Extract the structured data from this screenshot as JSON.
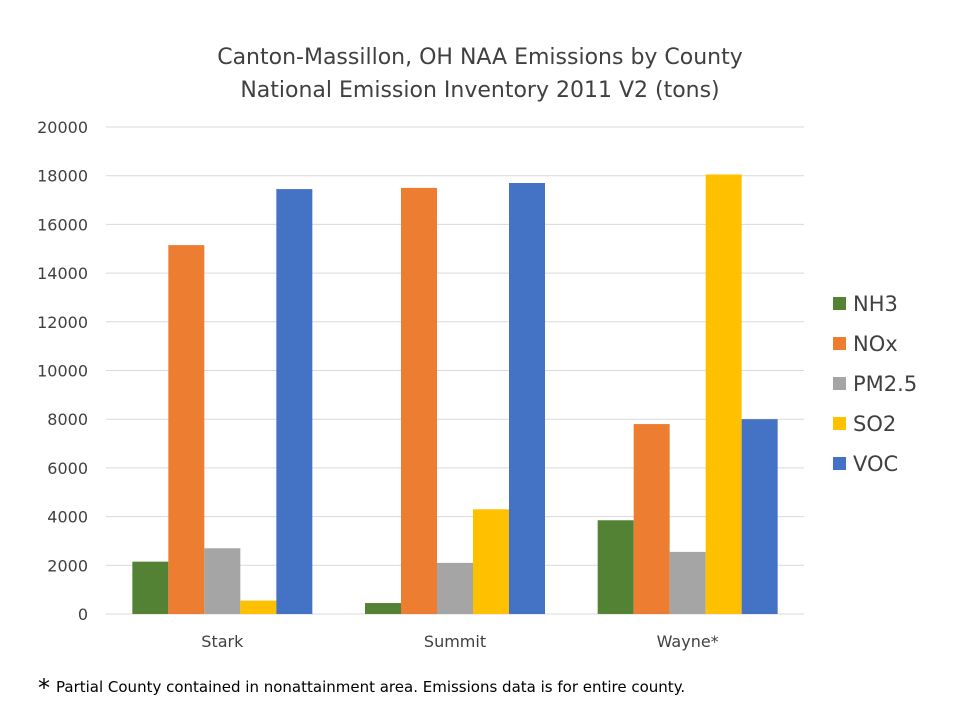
{
  "chart_data": {
    "type": "bar",
    "title": [
      "Canton-Massillon, OH NAA Emissions by County",
      "National Emission Inventory 2011 V2 (tons)"
    ],
    "xlabel": "",
    "ylabel": "",
    "categories": [
      "Stark",
      "Summit",
      "Wayne*"
    ],
    "ylim": [
      0,
      20000
    ],
    "yticks": [
      0,
      2000,
      4000,
      6000,
      8000,
      10000,
      12000,
      14000,
      16000,
      18000,
      20000
    ],
    "grid": true,
    "legend_position": "right",
    "series": [
      {
        "name": "NH3",
        "color": "#548235",
        "values": [
          2150,
          450,
          3850
        ]
      },
      {
        "name": "NOx",
        "color": "#ED7D31",
        "values": [
          15150,
          17500,
          7800
        ]
      },
      {
        "name": "PM2.5",
        "color": "#A5A5A5",
        "values": [
          2700,
          2100,
          2550
        ]
      },
      {
        "name": "SO2",
        "color": "#FFC000",
        "values": [
          550,
          4300,
          18050
        ]
      },
      {
        "name": "VOC",
        "color": "#4472C4",
        "values": [
          17450,
          17700,
          8000
        ]
      }
    ]
  },
  "footnote": {
    "marker": "*",
    "text": "Partial County contained in nonattainment area.  Emissions data is for entire county."
  }
}
